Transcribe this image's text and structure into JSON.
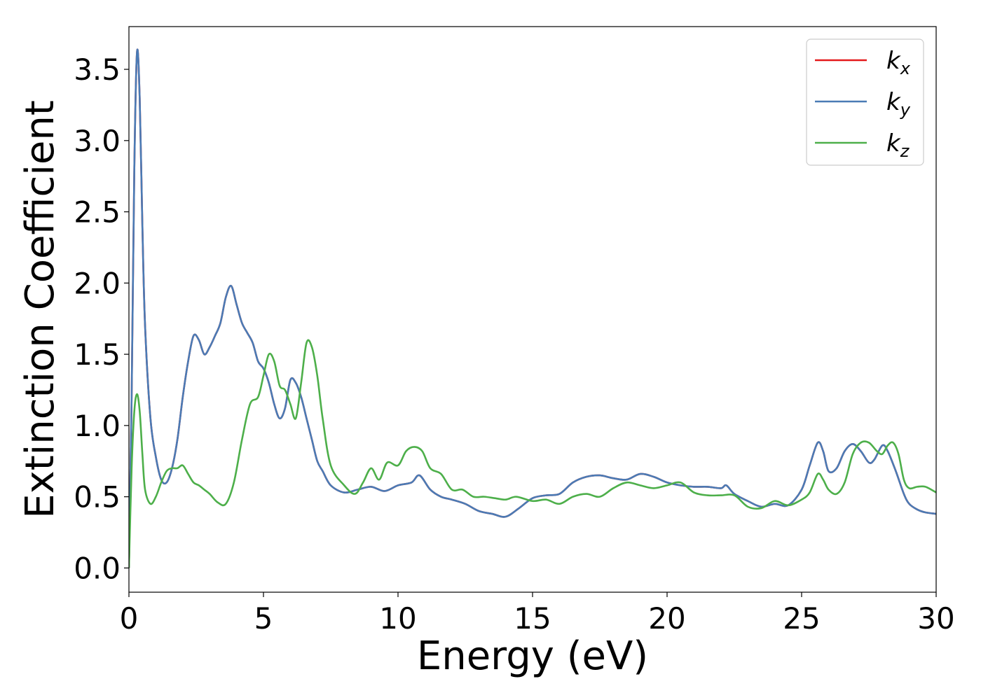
{
  "chart_data": {
    "type": "line",
    "title": "",
    "xlabel": "Energy (eV)",
    "ylabel": "Extinction Coefficient",
    "xlim": [
      0,
      30
    ],
    "ylim": [
      -0.17,
      3.8
    ],
    "xticks": [
      0,
      5,
      10,
      15,
      20,
      25,
      30
    ],
    "xtick_labels": [
      "0",
      "5",
      "10",
      "15",
      "20",
      "25",
      "30"
    ],
    "yticks": [
      0.0,
      0.5,
      1.0,
      1.5,
      2.0,
      2.5,
      3.0,
      3.5
    ],
    "ytick_labels": [
      "0.0",
      "0.5",
      "1.0",
      "1.5",
      "2.0",
      "2.5",
      "3.0",
      "3.5"
    ],
    "grid": false,
    "legend_position": "top-right",
    "series": [
      {
        "name": "k_x",
        "legend_base": "k",
        "legend_sub": "x",
        "color": "#e41a1c",
        "x": [
          0,
          0.1,
          0.2,
          0.3,
          0.4,
          0.5,
          0.6,
          0.8,
          1.0,
          1.2,
          1.4,
          1.6,
          1.8,
          2.0,
          2.2,
          2.4,
          2.6,
          2.8,
          3.0,
          3.2,
          3.4,
          3.6,
          3.8,
          4.0,
          4.2,
          4.4,
          4.6,
          4.8,
          5.0,
          5.2,
          5.4,
          5.6,
          5.8,
          6.0,
          6.2,
          6.4,
          6.6,
          6.8,
          7.0,
          7.2,
          7.5,
          8.0,
          8.5,
          9.0,
          9.5,
          10.0,
          10.5,
          10.8,
          11.2,
          11.6,
          12.0,
          12.5,
          13.0,
          13.5,
          14.0,
          14.5,
          15.0,
          15.5,
          16.0,
          16.5,
          17.0,
          17.5,
          18.0,
          18.5,
          19.0,
          19.5,
          20.0,
          20.5,
          21.0,
          21.5,
          22.0,
          22.2,
          22.5,
          23.0,
          23.5,
          24.0,
          24.5,
          25.0,
          25.3,
          25.6,
          25.8,
          26.0,
          26.3,
          26.6,
          26.9,
          27.2,
          27.5,
          27.7,
          28.0,
          28.2,
          28.5,
          28.8,
          29.0,
          29.3,
          29.6,
          30.0
        ],
        "y": [
          0.0,
          1.2,
          2.8,
          3.62,
          3.3,
          2.4,
          1.7,
          1.05,
          0.78,
          0.62,
          0.6,
          0.7,
          0.9,
          1.2,
          1.45,
          1.63,
          1.6,
          1.5,
          1.55,
          1.63,
          1.72,
          1.9,
          1.98,
          1.85,
          1.72,
          1.65,
          1.58,
          1.45,
          1.4,
          1.3,
          1.15,
          1.05,
          1.12,
          1.32,
          1.3,
          1.2,
          1.05,
          0.9,
          0.75,
          0.68,
          0.58,
          0.53,
          0.55,
          0.57,
          0.54,
          0.58,
          0.6,
          0.65,
          0.55,
          0.5,
          0.48,
          0.45,
          0.4,
          0.38,
          0.36,
          0.42,
          0.49,
          0.51,
          0.52,
          0.6,
          0.64,
          0.65,
          0.63,
          0.62,
          0.66,
          0.64,
          0.6,
          0.58,
          0.57,
          0.57,
          0.56,
          0.58,
          0.52,
          0.47,
          0.43,
          0.45,
          0.44,
          0.55,
          0.72,
          0.88,
          0.82,
          0.68,
          0.7,
          0.82,
          0.87,
          0.82,
          0.74,
          0.76,
          0.86,
          0.82,
          0.68,
          0.52,
          0.45,
          0.41,
          0.39,
          0.38
        ]
      },
      {
        "name": "k_y",
        "legend_base": "k",
        "legend_sub": "y",
        "color": "#4a7bb5",
        "x": [
          0,
          0.1,
          0.2,
          0.3,
          0.4,
          0.5,
          0.6,
          0.8,
          1.0,
          1.2,
          1.4,
          1.6,
          1.8,
          2.0,
          2.2,
          2.4,
          2.6,
          2.8,
          3.0,
          3.2,
          3.4,
          3.6,
          3.8,
          4.0,
          4.2,
          4.4,
          4.6,
          4.8,
          5.0,
          5.2,
          5.4,
          5.6,
          5.8,
          6.0,
          6.2,
          6.4,
          6.6,
          6.8,
          7.0,
          7.2,
          7.5,
          8.0,
          8.5,
          9.0,
          9.5,
          10.0,
          10.5,
          10.8,
          11.2,
          11.6,
          12.0,
          12.5,
          13.0,
          13.5,
          14.0,
          14.5,
          15.0,
          15.5,
          16.0,
          16.5,
          17.0,
          17.5,
          18.0,
          18.5,
          19.0,
          19.5,
          20.0,
          20.5,
          21.0,
          21.5,
          22.0,
          22.2,
          22.5,
          23.0,
          23.5,
          24.0,
          24.5,
          25.0,
          25.3,
          25.6,
          25.8,
          26.0,
          26.3,
          26.6,
          26.9,
          27.2,
          27.5,
          27.7,
          28.0,
          28.2,
          28.5,
          28.8,
          29.0,
          29.3,
          29.6,
          30.0
        ],
        "y": [
          0.0,
          1.2,
          2.8,
          3.62,
          3.3,
          2.4,
          1.7,
          1.05,
          0.78,
          0.62,
          0.6,
          0.7,
          0.9,
          1.2,
          1.45,
          1.63,
          1.6,
          1.5,
          1.55,
          1.63,
          1.72,
          1.9,
          1.98,
          1.85,
          1.72,
          1.65,
          1.58,
          1.45,
          1.4,
          1.3,
          1.15,
          1.05,
          1.12,
          1.32,
          1.3,
          1.2,
          1.05,
          0.9,
          0.75,
          0.68,
          0.58,
          0.53,
          0.55,
          0.57,
          0.54,
          0.58,
          0.6,
          0.65,
          0.55,
          0.5,
          0.48,
          0.45,
          0.4,
          0.38,
          0.36,
          0.42,
          0.49,
          0.51,
          0.52,
          0.6,
          0.64,
          0.65,
          0.63,
          0.62,
          0.66,
          0.64,
          0.6,
          0.58,
          0.57,
          0.57,
          0.56,
          0.58,
          0.52,
          0.47,
          0.43,
          0.45,
          0.44,
          0.55,
          0.72,
          0.88,
          0.82,
          0.68,
          0.7,
          0.82,
          0.87,
          0.82,
          0.74,
          0.76,
          0.86,
          0.82,
          0.68,
          0.52,
          0.45,
          0.41,
          0.39,
          0.38
        ]
      },
      {
        "name": "k_z",
        "legend_base": "k",
        "legend_sub": "z",
        "color": "#4daf4a",
        "x": [
          0,
          0.1,
          0.2,
          0.3,
          0.4,
          0.5,
          0.6,
          0.8,
          1.0,
          1.2,
          1.4,
          1.6,
          1.8,
          2.0,
          2.2,
          2.4,
          2.6,
          2.8,
          3.0,
          3.3,
          3.6,
          3.9,
          4.2,
          4.5,
          4.8,
          5.0,
          5.2,
          5.4,
          5.6,
          5.8,
          6.0,
          6.2,
          6.4,
          6.6,
          6.8,
          7.0,
          7.2,
          7.5,
          8.0,
          8.4,
          8.7,
          9.0,
          9.3,
          9.6,
          10.0,
          10.3,
          10.6,
          10.9,
          11.2,
          11.6,
          12.0,
          12.4,
          12.8,
          13.2,
          13.6,
          14.0,
          14.4,
          15.0,
          15.5,
          16.0,
          16.5,
          17.0,
          17.5,
          18.0,
          18.5,
          19.0,
          19.5,
          20.0,
          20.5,
          21.0,
          21.5,
          22.0,
          22.5,
          23.0,
          23.5,
          24.0,
          24.5,
          25.0,
          25.3,
          25.6,
          25.8,
          26.0,
          26.3,
          26.6,
          26.9,
          27.2,
          27.5,
          27.8,
          28.0,
          28.2,
          28.4,
          28.6,
          28.8,
          29.0,
          29.3,
          29.6,
          30.0
        ],
        "y": [
          0.0,
          0.7,
          1.1,
          1.22,
          1.1,
          0.8,
          0.55,
          0.45,
          0.5,
          0.6,
          0.68,
          0.7,
          0.7,
          0.72,
          0.66,
          0.6,
          0.58,
          0.55,
          0.52,
          0.46,
          0.45,
          0.6,
          0.9,
          1.15,
          1.2,
          1.35,
          1.5,
          1.45,
          1.28,
          1.25,
          1.15,
          1.05,
          1.3,
          1.58,
          1.55,
          1.35,
          1.05,
          0.72,
          0.58,
          0.52,
          0.6,
          0.7,
          0.62,
          0.74,
          0.72,
          0.82,
          0.85,
          0.82,
          0.7,
          0.66,
          0.55,
          0.55,
          0.5,
          0.5,
          0.49,
          0.48,
          0.5,
          0.47,
          0.48,
          0.45,
          0.5,
          0.52,
          0.5,
          0.56,
          0.6,
          0.58,
          0.56,
          0.58,
          0.6,
          0.53,
          0.51,
          0.51,
          0.51,
          0.43,
          0.42,
          0.47,
          0.44,
          0.48,
          0.53,
          0.66,
          0.62,
          0.55,
          0.52,
          0.6,
          0.8,
          0.88,
          0.88,
          0.82,
          0.8,
          0.86,
          0.88,
          0.8,
          0.62,
          0.56,
          0.57,
          0.57,
          0.53
        ]
      }
    ]
  }
}
